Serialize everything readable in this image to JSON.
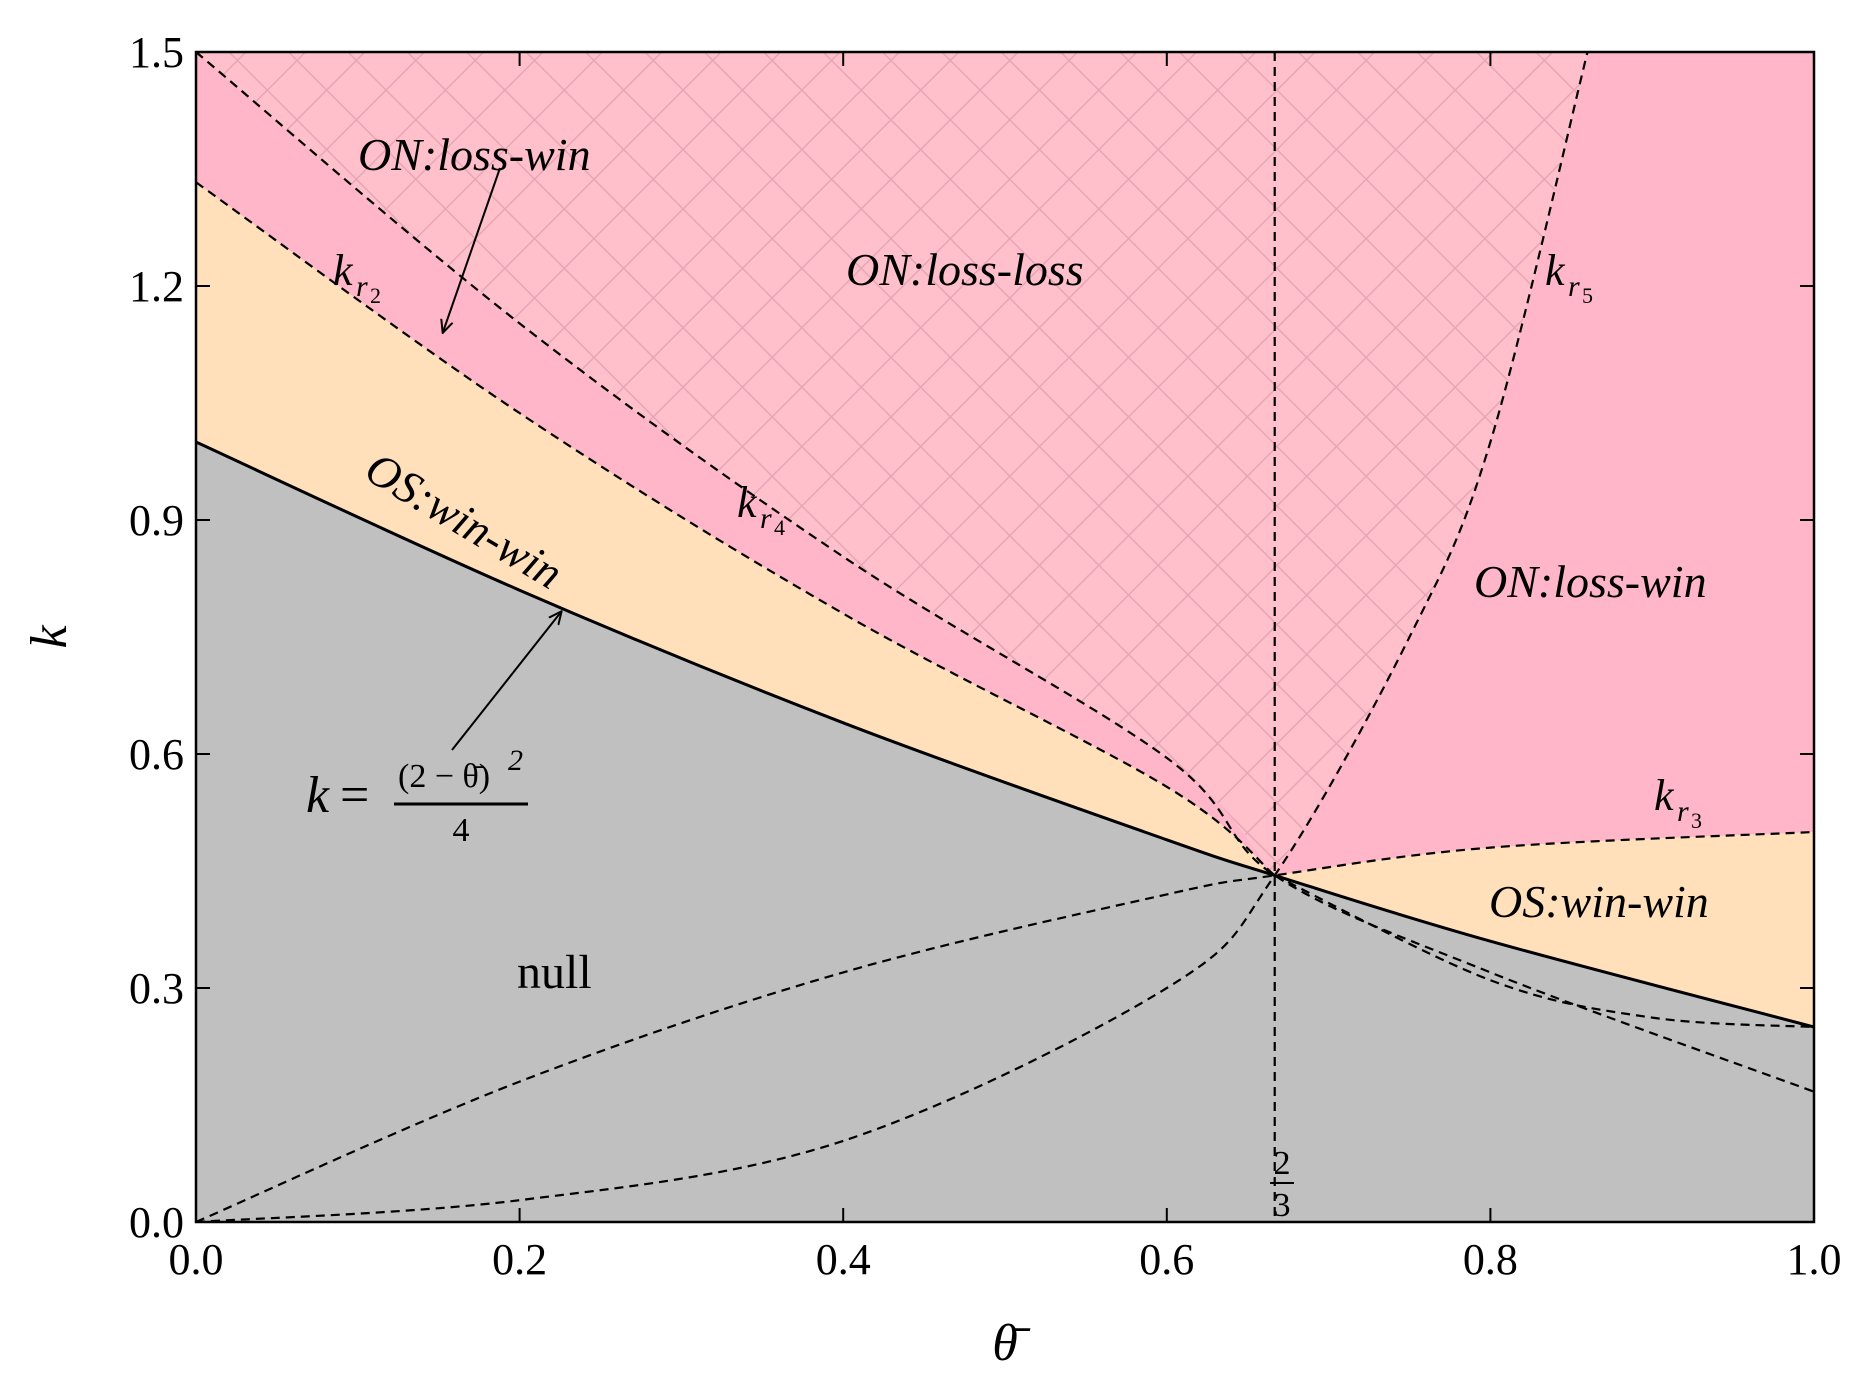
{
  "colors": {
    "null": "#c0c0c0",
    "os_win_win": "#ffe0bb",
    "on_loss_win": "#ffb6c8",
    "on_loss_loss": "#ffc0cb",
    "hatch": "#e6a6b6"
  },
  "chart_data": {
    "type": "region-plot",
    "xlabel": "θ̄",
    "ylabel": "k",
    "xlim": [
      0.0,
      1.0
    ],
    "ylim": [
      0.0,
      1.5
    ],
    "x_ticks": [
      "0.0",
      "0.2",
      "0.4",
      "0.6",
      "0.8",
      "1.0"
    ],
    "y_ticks": [
      "0.0",
      "0.3",
      "0.6",
      "0.9",
      "1.2",
      "1.5"
    ],
    "vertical_line": {
      "x": 0.6667,
      "label_num": "2",
      "label_den": "3"
    },
    "boundary_formula": {
      "lhs": "k",
      "eq": "=",
      "numerator": "(2 − θ̄)",
      "exponent": "2",
      "denominator": "4"
    },
    "curves": [
      {
        "name": "k_b",
        "style": "solid",
        "desc": "k = (2-θ)^2/4",
        "points": [
          [
            0,
            1.0
          ],
          [
            0.2,
            0.81
          ],
          [
            0.4,
            0.64
          ],
          [
            0.6,
            0.49
          ],
          [
            0.6667,
            0.4444
          ],
          [
            0.8,
            0.36
          ],
          [
            1.0,
            0.25
          ]
        ]
      },
      {
        "name": "k_r2",
        "label": "k",
        "sub": "r",
        "subsub": "2",
        "style": "dashed",
        "points": [
          [
            0,
            1.333
          ],
          [
            0.2,
            1.037
          ],
          [
            0.4,
            0.78
          ],
          [
            0.6,
            0.558
          ],
          [
            0.6667,
            0.4444
          ]
        ]
      },
      {
        "name": "k_r4",
        "label": "k",
        "sub": "r",
        "subsub": "4",
        "style": "dashed",
        "points": [
          [
            0,
            1.5
          ],
          [
            0.2,
            1.152
          ],
          [
            0.4,
            0.853
          ],
          [
            0.6,
            0.595
          ],
          [
            0.6667,
            0.4444
          ],
          [
            0.8,
            0.32
          ],
          [
            1.0,
            0.167
          ]
        ]
      },
      {
        "name": "k_r5",
        "label": "k",
        "sub": "r",
        "subsub": "5",
        "style": "dashed",
        "points": [
          [
            0,
            0.0
          ],
          [
            0.2,
            0.028
          ],
          [
            0.4,
            0.104
          ],
          [
            0.6,
            0.3
          ],
          [
            0.6667,
            0.4444
          ],
          [
            0.75,
            0.75
          ],
          [
            0.8,
            1.0
          ],
          [
            0.86,
            1.5
          ]
        ]
      },
      {
        "name": "k_r3",
        "label": "k",
        "sub": "r",
        "subsub": "3",
        "style": "dashed",
        "points": [
          [
            0,
            0.0
          ],
          [
            0.2,
            0.18
          ],
          [
            0.4,
            0.32
          ],
          [
            0.6,
            0.42
          ],
          [
            0.6667,
            0.4444
          ],
          [
            0.8,
            0.48
          ],
          [
            1.0,
            0.5
          ]
        ]
      },
      {
        "name": "k_lower",
        "style": "dashed",
        "points": [
          [
            0.6667,
            0.4444
          ],
          [
            0.8,
            0.31
          ],
          [
            0.9,
            0.262
          ],
          [
            1.0,
            0.25
          ]
        ]
      }
    ],
    "regions": [
      {
        "name": "null",
        "label": "null"
      },
      {
        "name": "os_win_win_left",
        "label": "OS:win-win"
      },
      {
        "name": "os_win_win_right",
        "label": "OS:win-win"
      },
      {
        "name": "on_loss_win_left",
        "label": "ON:loss-win"
      },
      {
        "name": "on_loss_loss",
        "label": "ON:loss-loss"
      },
      {
        "name": "on_loss_win_right",
        "label": "ON:loss-win"
      }
    ]
  }
}
